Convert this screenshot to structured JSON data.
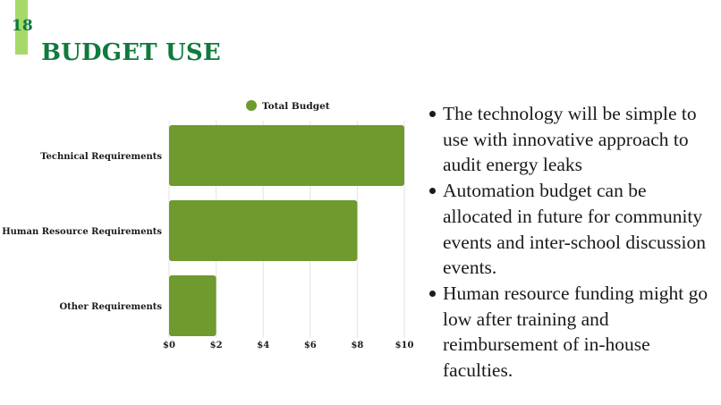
{
  "slide": {
    "number": "18",
    "title": "BUDGET USE"
  },
  "colors": {
    "accent": "#a6d96a",
    "title": "#0f7a3c",
    "bar": "#6e9a2e"
  },
  "chart_data": {
    "type": "bar",
    "orientation": "horizontal",
    "categories": [
      "Technical Requirements",
      "Human Resource Requirements",
      "Other Requirements"
    ],
    "series": [
      {
        "name": "Total Budget",
        "values": [
          10,
          8,
          2
        ]
      }
    ],
    "xlim": [
      0,
      10
    ],
    "xticks": [
      "$0",
      "$2",
      "$4",
      "$6",
      "$8",
      "$10"
    ],
    "grid": "vertical",
    "legend": "top"
  },
  "bullets": [
    "The technology will be simple to use with innovative approach to audit energy leaks",
    "Automation budget can be allocated in future for community events and inter-school discussion events.",
    "Human resource funding might go low after training and reimbursement of in-house faculties."
  ]
}
